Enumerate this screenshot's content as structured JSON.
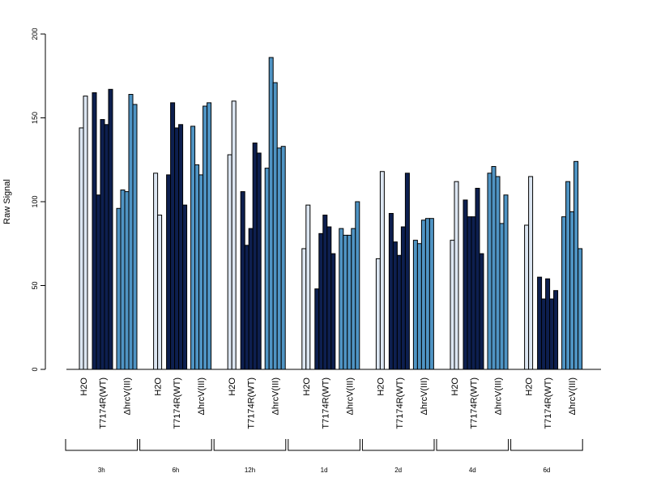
{
  "chart_data": {
    "type": "bar",
    "ylabel": "Raw Signal",
    "ylim": [
      0,
      200
    ],
    "yticks": [
      0,
      50,
      100,
      150,
      200
    ],
    "treatment_labels": [
      "H2O",
      "T7174R(WT)",
      "ΔhrcV(III)"
    ],
    "treatment_colors": [
      "#dce6f2",
      "#0d1f4f",
      "#4f94c4"
    ],
    "groups": [
      {
        "label": "3h",
        "series": [
          {
            "treatment": "H2O",
            "values": [
              144,
              163
            ]
          },
          {
            "treatment": "T7174R(WT)",
            "values": [
              165,
              104,
              149,
              146,
              167
            ]
          },
          {
            "treatment": "ΔhrcV(III)",
            "values": [
              96,
              107,
              106,
              164,
              158
            ]
          }
        ]
      },
      {
        "label": "6h",
        "series": [
          {
            "treatment": "H2O",
            "values": [
              117,
              92
            ]
          },
          {
            "treatment": "T7174R(WT)",
            "values": [
              116,
              159,
              144,
              146,
              98
            ]
          },
          {
            "treatment": "ΔhrcV(III)",
            "values": [
              145,
              122,
              116,
              157,
              159
            ]
          }
        ]
      },
      {
        "label": "12h",
        "series": [
          {
            "treatment": "H2O",
            "values": [
              128,
              160
            ]
          },
          {
            "treatment": "T7174R(WT)",
            "values": [
              106,
              74,
              84,
              135,
              129
            ]
          },
          {
            "treatment": "ΔhrcV(III)",
            "values": [
              120,
              186,
              171,
              132,
              133
            ]
          }
        ]
      },
      {
        "label": "1d",
        "series": [
          {
            "treatment": "H2O",
            "values": [
              72,
              98
            ]
          },
          {
            "treatment": "T7174R(WT)",
            "values": [
              48,
              81,
              92,
              85,
              69
            ]
          },
          {
            "treatment": "ΔhrcV(III)",
            "values": [
              84,
              80,
              80,
              84,
              100
            ]
          }
        ]
      },
      {
        "label": "2d",
        "series": [
          {
            "treatment": "H2O",
            "values": [
              66,
              118
            ]
          },
          {
            "treatment": "T7174R(WT)",
            "values": [
              93,
              76,
              68,
              85,
              117
            ]
          },
          {
            "treatment": "ΔhrcV(III)",
            "values": [
              77,
              75,
              89,
              90,
              90
            ]
          }
        ]
      },
      {
        "label": "4d",
        "series": [
          {
            "treatment": "H2O",
            "values": [
              77,
              112
            ]
          },
          {
            "treatment": "T7174R(WT)",
            "values": [
              101,
              91,
              91,
              108,
              69
            ]
          },
          {
            "treatment": "ΔhrcV(III)",
            "values": [
              117,
              121,
              115,
              87,
              104
            ]
          }
        ]
      },
      {
        "label": "6d",
        "series": [
          {
            "treatment": "H2O",
            "values": [
              86,
              115
            ]
          },
          {
            "treatment": "T7174R(WT)",
            "values": [
              55,
              42,
              54,
              42,
              47
            ]
          },
          {
            "treatment": "ΔhrcV(III)",
            "values": [
              91,
              112,
              94,
              124,
              72
            ]
          }
        ]
      }
    ]
  }
}
